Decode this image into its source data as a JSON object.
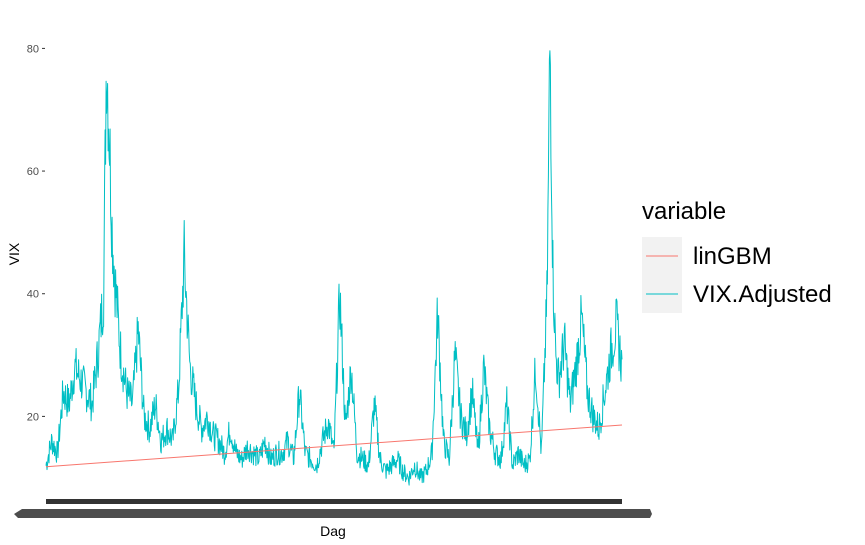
{
  "chart_data": {
    "type": "line",
    "title": "",
    "xlabel": "Dag",
    "ylabel": "VIX",
    "ylim": [
      8,
      83
    ],
    "y_ticks": [
      20,
      40,
      60,
      80
    ],
    "y_tick_labels": [
      "20",
      "40",
      "60",
      "80"
    ],
    "x_tick_labels_legible": false,
    "grid": false,
    "legend": {
      "title": "variable",
      "placement": "right",
      "entries": [
        "linGBM",
        "VIX.Adjusted"
      ]
    },
    "colors": {
      "linGBM": "#F8766D",
      "VIX.Adjusted": "#00BFC4"
    },
    "series": [
      {
        "name": "linGBM",
        "x": [
          0,
          1
        ],
        "values": [
          11.8,
          18.6
        ]
      },
      {
        "name": "VIX.Adjusted",
        "x": [
          0.0,
          0.01,
          0.02,
          0.03,
          0.04,
          0.05,
          0.06,
          0.07,
          0.08,
          0.09,
          0.1,
          0.105,
          0.11,
          0.115,
          0.12,
          0.125,
          0.13,
          0.14,
          0.15,
          0.16,
          0.17,
          0.18,
          0.19,
          0.2,
          0.21,
          0.22,
          0.23,
          0.24,
          0.25,
          0.26,
          0.27,
          0.28,
          0.29,
          0.3,
          0.31,
          0.32,
          0.33,
          0.34,
          0.35,
          0.36,
          0.37,
          0.38,
          0.39,
          0.4,
          0.41,
          0.42,
          0.43,
          0.44,
          0.45,
          0.46,
          0.47,
          0.48,
          0.49,
          0.5,
          0.51,
          0.52,
          0.53,
          0.54,
          0.55,
          0.56,
          0.57,
          0.58,
          0.59,
          0.6,
          0.61,
          0.62,
          0.63,
          0.64,
          0.65,
          0.66,
          0.67,
          0.68,
          0.69,
          0.7,
          0.71,
          0.72,
          0.73,
          0.74,
          0.75,
          0.76,
          0.77,
          0.78,
          0.79,
          0.8,
          0.81,
          0.82,
          0.83,
          0.84,
          0.85,
          0.86,
          0.87,
          0.875,
          0.88,
          0.885,
          0.89,
          0.9,
          0.91,
          0.92,
          0.93,
          0.94,
          0.95,
          0.96,
          0.97,
          0.98,
          0.99,
          1.0
        ],
        "values": [
          12,
          16,
          14,
          24,
          22,
          28,
          26,
          24,
          22,
          30,
          40,
          80,
          66,
          50,
          42,
          36,
          30,
          24,
          22,
          34,
          20,
          18,
          22,
          16,
          18,
          16,
          24,
          46,
          28,
          22,
          18,
          20,
          17,
          16,
          14,
          18,
          14,
          13,
          15,
          14,
          13,
          16,
          13,
          14,
          14,
          16,
          13,
          24,
          14,
          13,
          12,
          16,
          19,
          14,
          40,
          18,
          28,
          14,
          13,
          12,
          22,
          13,
          11,
          12,
          13,
          11,
          10,
          12,
          10,
          11,
          14,
          37,
          16,
          13,
          30,
          20,
          17,
          24,
          14,
          28,
          18,
          14,
          13,
          22,
          12,
          14,
          12,
          13,
          28,
          14,
          40,
          82,
          44,
          30,
          26,
          32,
          22,
          28,
          36,
          24,
          20,
          18,
          24,
          30,
          35,
          28
        ]
      }
    ]
  }
}
